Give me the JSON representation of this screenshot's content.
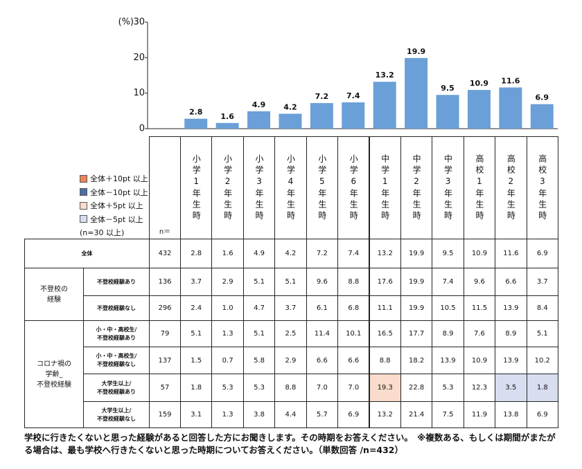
{
  "chart_data": {
    "type": "bar",
    "ylabel": "(%)",
    "categories": [
      "小学1年生時",
      "小学2年生時",
      "小学3年生時",
      "小学4年生時",
      "小学5年生時",
      "小学6年生時",
      "中学1年生時",
      "中学2年生時",
      "中学3年生時",
      "高校1年生時",
      "高校2年生時",
      "高校3年生時"
    ],
    "values": [
      2.8,
      1.6,
      4.9,
      4.2,
      7.2,
      7.4,
      13.2,
      19.9,
      9.5,
      10.9,
      11.6,
      6.9
    ],
    "color": "#6b9fd8",
    "ylim": [
      0,
      30
    ],
    "yticks": [
      0,
      10,
      20,
      30
    ]
  },
  "legend": {
    "items": [
      {
        "label": "全体＋10pt 以上",
        "color": "#ea8458"
      },
      {
        "label": "全体－10pt 以上",
        "color": "#4c6fa8"
      },
      {
        "label": "全体＋5pt 以上",
        "color": "#f9dccb"
      },
      {
        "label": "全体－5pt 以上",
        "color": "#d8ddf0"
      }
    ],
    "note": "(n=30 以上)"
  },
  "table": {
    "n_label": "n＝",
    "total": {
      "label": "全体",
      "n": 432,
      "cells": [
        "2.8",
        "1.6",
        "4.9",
        "4.2",
        "7.2",
        "7.4",
        "13.2",
        "19.9",
        "9.5",
        "10.9",
        "11.6",
        "6.9"
      ]
    },
    "groups": [
      {
        "label": "不登校の\n経験",
        "rows": [
          {
            "label": "不登校経験あり",
            "n": 136,
            "cells": [
              "3.7",
              "2.9",
              "5.1",
              "5.1",
              "9.6",
              "8.8",
              "17.6",
              "19.9",
              "7.4",
              "9.6",
              "6.6",
              "3.7"
            ]
          },
          {
            "label": "不登校経験なし",
            "n": 296,
            "cells": [
              "2.4",
              "1.0",
              "4.7",
              "3.7",
              "6.1",
              "6.8",
              "11.1",
              "19.9",
              "10.5",
              "11.5",
              "13.9",
              "8.4"
            ]
          }
        ]
      },
      {
        "label": "コロナ禍の\n学齢_\n不登校経験",
        "rows": [
          {
            "label": "小・中・高校生/\n不登校経験あり",
            "n": 79,
            "cells": [
              "5.1",
              "1.3",
              "5.1",
              "2.5",
              "11.4",
              "10.1",
              "16.5",
              "17.7",
              "8.9",
              "7.6",
              "8.9",
              "5.1"
            ]
          },
          {
            "label": "小・中・高校生/\n不登校経験なし",
            "n": 137,
            "cells": [
              "1.5",
              "0.7",
              "5.8",
              "2.9",
              "6.6",
              "6.6",
              "8.8",
              "18.2",
              "13.9",
              "10.9",
              "13.9",
              "10.2"
            ]
          },
          {
            "label": "大学生以上/\n不登校経験あり",
            "n": 57,
            "cells": [
              "1.8",
              "5.3",
              "5.3",
              "8.8",
              "7.0",
              "7.0",
              "19.3",
              "22.8",
              "5.3",
              "12.3",
              "3.5",
              "1.8"
            ]
          },
          {
            "label": "大学生以上/\n不登校経験なし",
            "n": 159,
            "cells": [
              "3.1",
              "1.3",
              "3.8",
              "4.4",
              "5.7",
              "6.9",
              "13.2",
              "21.4",
              "7.5",
              "11.9",
              "13.8",
              "6.9"
            ]
          }
        ]
      }
    ],
    "highlights": [
      {
        "group": 1,
        "row": 2,
        "col": 6,
        "legend": 2
      },
      {
        "group": 1,
        "row": 2,
        "col": 10,
        "legend": 3
      },
      {
        "group": 1,
        "row": 2,
        "col": 11,
        "legend": 3
      }
    ]
  },
  "footnote": "学校に行きたくないと思った経験があると回答した方にお聞きします。その時期をお答えください。　※複数ある、もしくは期間がまたがる場合は、最も学校へ行きたくないと思った時期についてお答えください。（単数回答 /n=432）"
}
